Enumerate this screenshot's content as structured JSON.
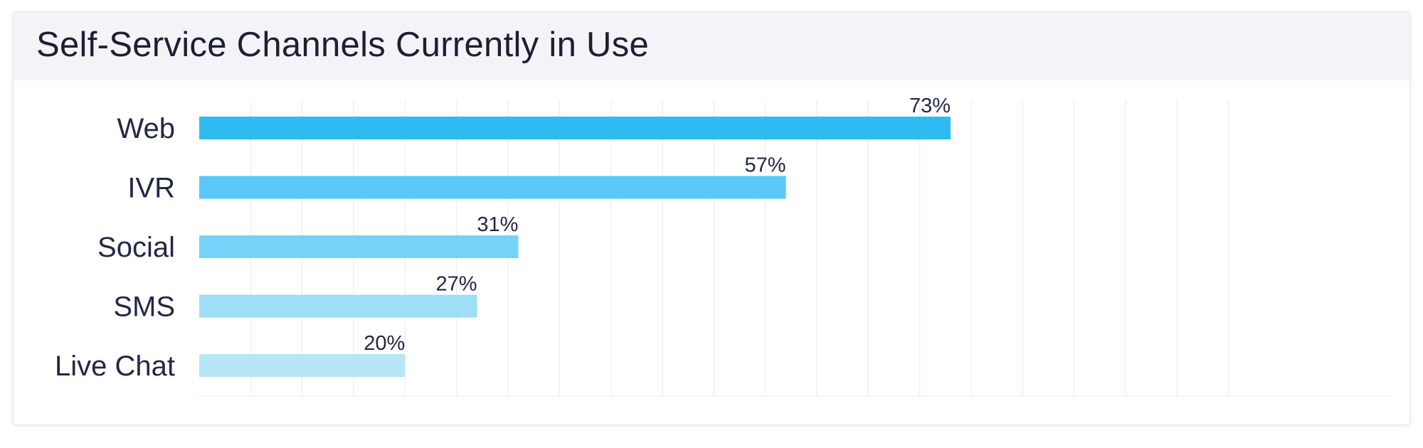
{
  "chart_data": {
    "type": "bar",
    "orientation": "horizontal",
    "title": "Self-Service Channels Currently in Use",
    "categories": [
      "Web",
      "IVR",
      "Social",
      "SMS",
      "Live Chat"
    ],
    "values": [
      73,
      57,
      31,
      27,
      20
    ],
    "value_labels": [
      "73%",
      "57%",
      "31%",
      "27%",
      "20%"
    ],
    "colors": [
      "#2dbbf2",
      "#5ac8f9",
      "#76d3f8",
      "#9fdef7",
      "#b8e6f7"
    ],
    "xlim": [
      0,
      100
    ],
    "grid": true,
    "legend": "none"
  }
}
